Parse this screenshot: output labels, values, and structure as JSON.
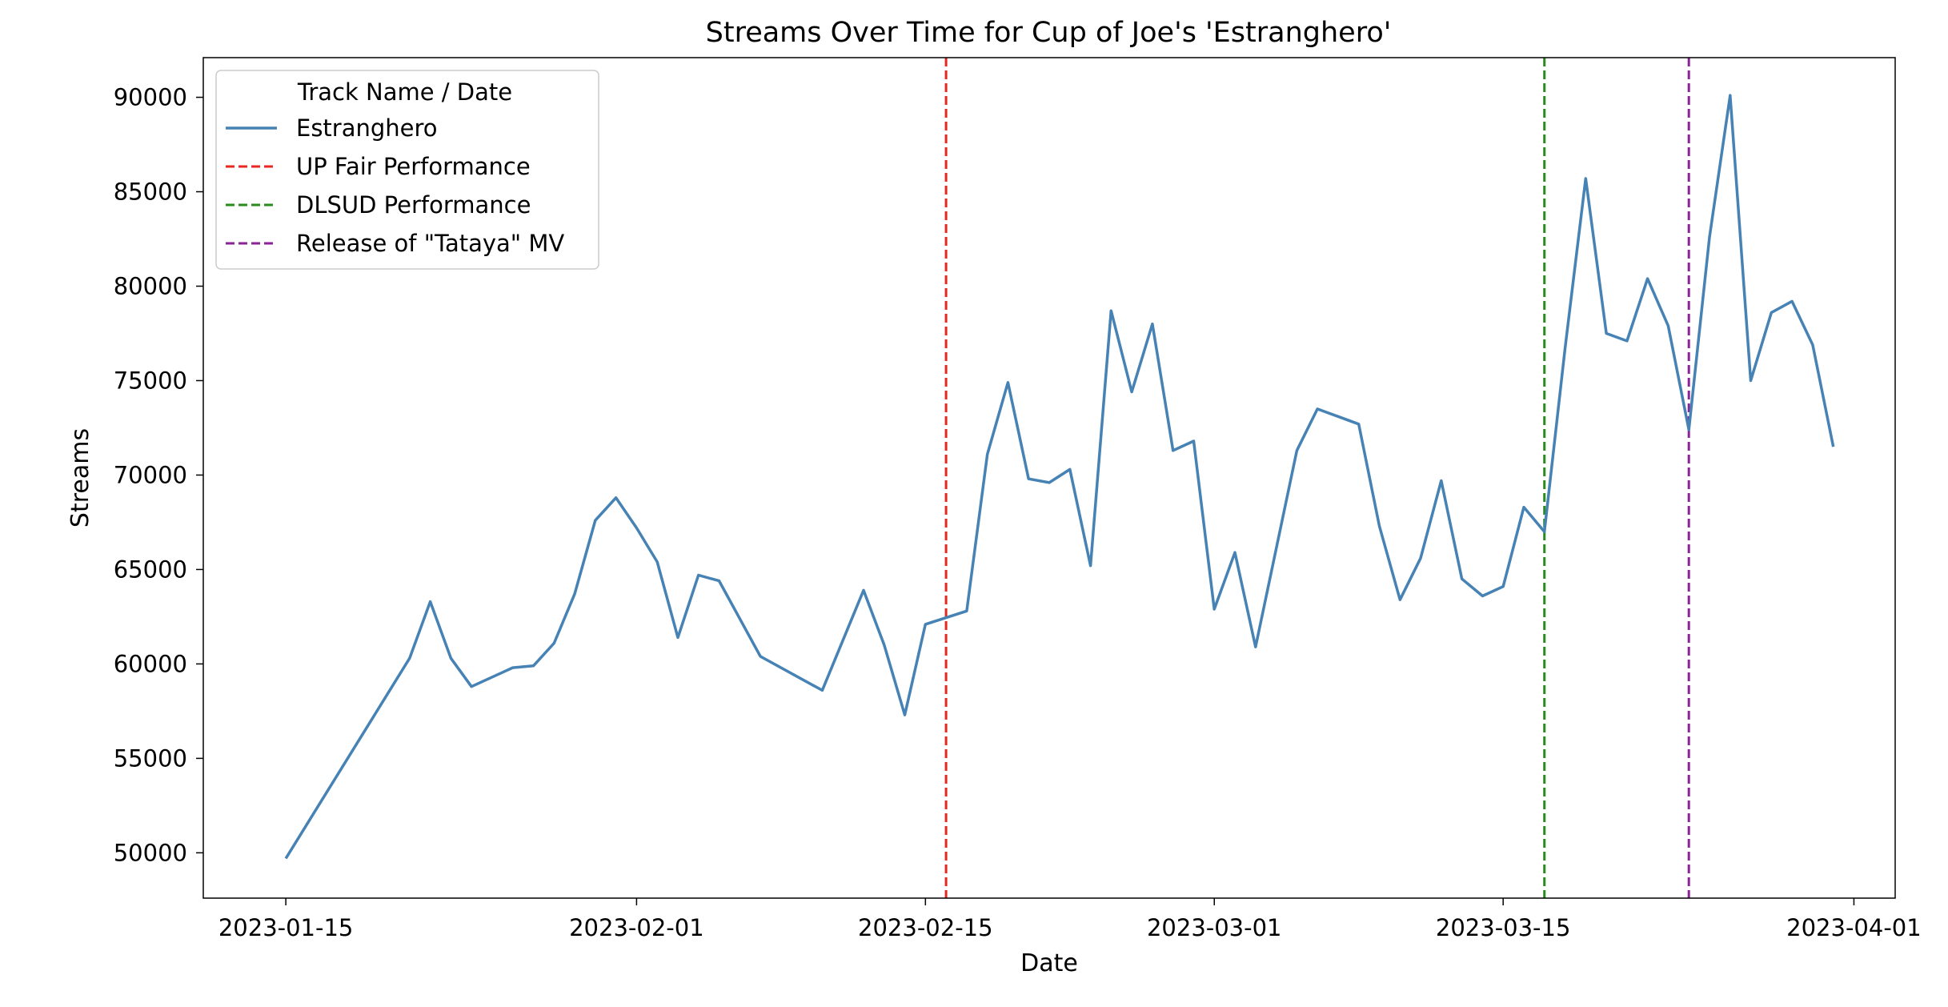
{
  "chart_data": {
    "type": "line",
    "title": "Streams Over Time for Cup of Joe's 'Estranghero'",
    "xlabel": "Date",
    "ylabel": "Streams",
    "xlim": [
      "2023-01-11",
      "2023-04-03"
    ],
    "ylim": [
      47600,
      92100
    ],
    "x_ticks": [
      "2023-01-15",
      "2023-02-01",
      "2023-02-15",
      "2023-03-01",
      "2023-03-15",
      "2023-04-01"
    ],
    "y_ticks": [
      50000,
      55000,
      60000,
      65000,
      70000,
      75000,
      80000,
      85000,
      90000
    ],
    "grid": false,
    "legend": {
      "title": "Track Name / Date",
      "placement": "top-left"
    },
    "series": [
      {
        "name": "Estranghero",
        "color": "#4682b4",
        "x": [
          "2023-01-15",
          "2023-01-21",
          "2023-01-22",
          "2023-01-23",
          "2023-01-24",
          "2023-01-26",
          "2023-01-27",
          "2023-01-28",
          "2023-01-29",
          "2023-01-30",
          "2023-01-31",
          "2023-02-01",
          "2023-02-02",
          "2023-02-03",
          "2023-02-04",
          "2023-02-05",
          "2023-02-06",
          "2023-02-07",
          "2023-02-10",
          "2023-02-12",
          "2023-02-13",
          "2023-02-14",
          "2023-02-15",
          "2023-02-17",
          "2023-02-18",
          "2023-02-19",
          "2023-02-20",
          "2023-02-21",
          "2023-02-22",
          "2023-02-23",
          "2023-02-24",
          "2023-02-25",
          "2023-02-26",
          "2023-02-27",
          "2023-02-28",
          "2023-03-01",
          "2023-03-02",
          "2023-03-03",
          "2023-03-05",
          "2023-03-06",
          "2023-03-07",
          "2023-03-08",
          "2023-03-09",
          "2023-03-10",
          "2023-03-11",
          "2023-03-12",
          "2023-03-13",
          "2023-03-14",
          "2023-03-15",
          "2023-03-16",
          "2023-03-17",
          "2023-03-18",
          "2023-03-19",
          "2023-03-20",
          "2023-03-21",
          "2023-03-22",
          "2023-03-23",
          "2023-03-24",
          "2023-03-25",
          "2023-03-26",
          "2023-03-27",
          "2023-03-28",
          "2023-03-29",
          "2023-03-30",
          "2023-03-31"
        ],
        "values": [
          49700,
          60300,
          63300,
          60300,
          58800,
          59800,
          59900,
          61100,
          63700,
          67600,
          68800,
          67200,
          65400,
          61400,
          64700,
          64400,
          62400,
          60400,
          58600,
          63900,
          61000,
          57300,
          62100,
          62800,
          71100,
          74900,
          69800,
          69600,
          70300,
          65200,
          78700,
          74400,
          78000,
          71300,
          71800,
          62900,
          65900,
          60900,
          71300,
          73500,
          73100,
          72700,
          67300,
          63400,
          65600,
          69700,
          64500,
          63600,
          64100,
          68300,
          67000,
          76700,
          85700,
          77500,
          77100,
          80400,
          77900,
          72400,
          82600,
          90100,
          75000,
          78600,
          79200,
          76900,
          71500
        ]
      }
    ],
    "reference_lines": [
      {
        "name": "UP Fair Performance",
        "date": "2023-02-16",
        "color": "#e8271e"
      },
      {
        "name": "DLSUD Performance",
        "date": "2023-03-17",
        "color": "#2a8a1e"
      },
      {
        "name": "Release of \"Tataya\" MV",
        "date": "2023-03-24",
        "color": "#8a2298"
      }
    ]
  }
}
